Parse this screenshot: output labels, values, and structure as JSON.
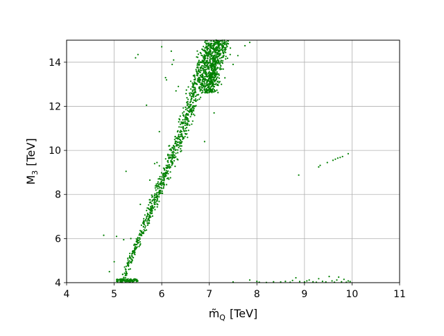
{
  "chart_data": {
    "type": "scatter",
    "title": "",
    "xlabel_base": "m̃",
    "xlabel_sub": "Q",
    "xlabel_unit": "[TeV]",
    "ylabel_base": "M",
    "ylabel_sub": "3",
    "ylabel_unit": "[TeV]",
    "xlim": [
      4,
      11
    ],
    "ylim": [
      4,
      15
    ],
    "xticks": [
      4,
      5,
      6,
      7,
      8,
      9,
      10,
      11
    ],
    "yticks": [
      4,
      6,
      8,
      10,
      12,
      14
    ],
    "grid": true,
    "legend": "none",
    "marker_color": "#008000",
    "series": [
      {
        "values": [
          [
            4.78,
            6.15
          ],
          [
            5.05,
            6.1
          ],
          [
            5.2,
            5.95
          ],
          [
            5.25,
            9.05
          ],
          [
            5.45,
            14.2
          ],
          [
            5.5,
            14.35
          ],
          [
            5.68,
            12.05
          ],
          [
            5.9,
            9.45
          ],
          [
            5.95,
            9.3
          ],
          [
            6.0,
            14.7
          ],
          [
            6.08,
            13.3
          ],
          [
            6.1,
            13.2
          ],
          [
            6.2,
            14.5
          ],
          [
            6.22,
            13.9
          ],
          [
            6.25,
            14.1
          ],
          [
            6.3,
            12.7
          ],
          [
            6.35,
            12.9
          ],
          [
            5.55,
            7.55
          ],
          [
            5.85,
            9.4
          ],
          [
            6.45,
            11.6
          ],
          [
            6.5,
            11.95
          ],
          [
            5.95,
            10.85
          ],
          [
            6.15,
            10.2
          ],
          [
            6.9,
            10.4
          ],
          [
            7.1,
            11.7
          ],
          [
            6.05,
            8.8
          ],
          [
            5.75,
            8.65
          ],
          [
            4.9,
            4.5
          ],
          [
            5.0,
            4.95
          ],
          [
            5.35,
            6.0
          ],
          [
            7.5,
            13.9
          ],
          [
            7.6,
            14.3
          ],
          [
            7.75,
            14.75
          ],
          [
            7.85,
            14.9
          ],
          [
            8.88,
            8.88
          ],
          [
            9.3,
            9.25
          ],
          [
            9.33,
            9.32
          ],
          [
            9.48,
            9.45
          ],
          [
            9.6,
            9.55
          ],
          [
            9.65,
            9.6
          ],
          [
            9.7,
            9.65
          ],
          [
            9.75,
            9.68
          ],
          [
            9.8,
            9.72
          ],
          [
            9.92,
            9.85
          ],
          [
            7.5,
            4.03
          ],
          [
            7.85,
            4.12
          ],
          [
            8.0,
            4.06
          ],
          [
            8.05,
            4.02
          ],
          [
            8.2,
            4.01
          ],
          [
            8.35,
            4.04
          ],
          [
            8.5,
            4.03
          ],
          [
            8.6,
            4.06
          ],
          [
            8.7,
            4.02
          ],
          [
            8.75,
            4.1
          ],
          [
            8.82,
            4.22
          ],
          [
            8.9,
            4.05
          ],
          [
            9.0,
            4.03
          ],
          [
            9.05,
            4.08
          ],
          [
            9.1,
            4.12
          ],
          [
            9.18,
            4.04
          ],
          [
            9.25,
            4.02
          ],
          [
            9.3,
            4.18
          ],
          [
            9.38,
            4.06
          ],
          [
            9.45,
            4.03
          ],
          [
            9.52,
            4.28
          ],
          [
            9.58,
            4.08
          ],
          [
            9.63,
            4.02
          ],
          [
            9.68,
            4.12
          ],
          [
            9.72,
            4.25
          ],
          [
            9.78,
            4.04
          ],
          [
            9.83,
            4.15
          ],
          [
            9.88,
            4.02
          ],
          [
            9.92,
            4.08
          ],
          [
            9.96,
            4.05
          ]
        ]
      }
    ]
  }
}
